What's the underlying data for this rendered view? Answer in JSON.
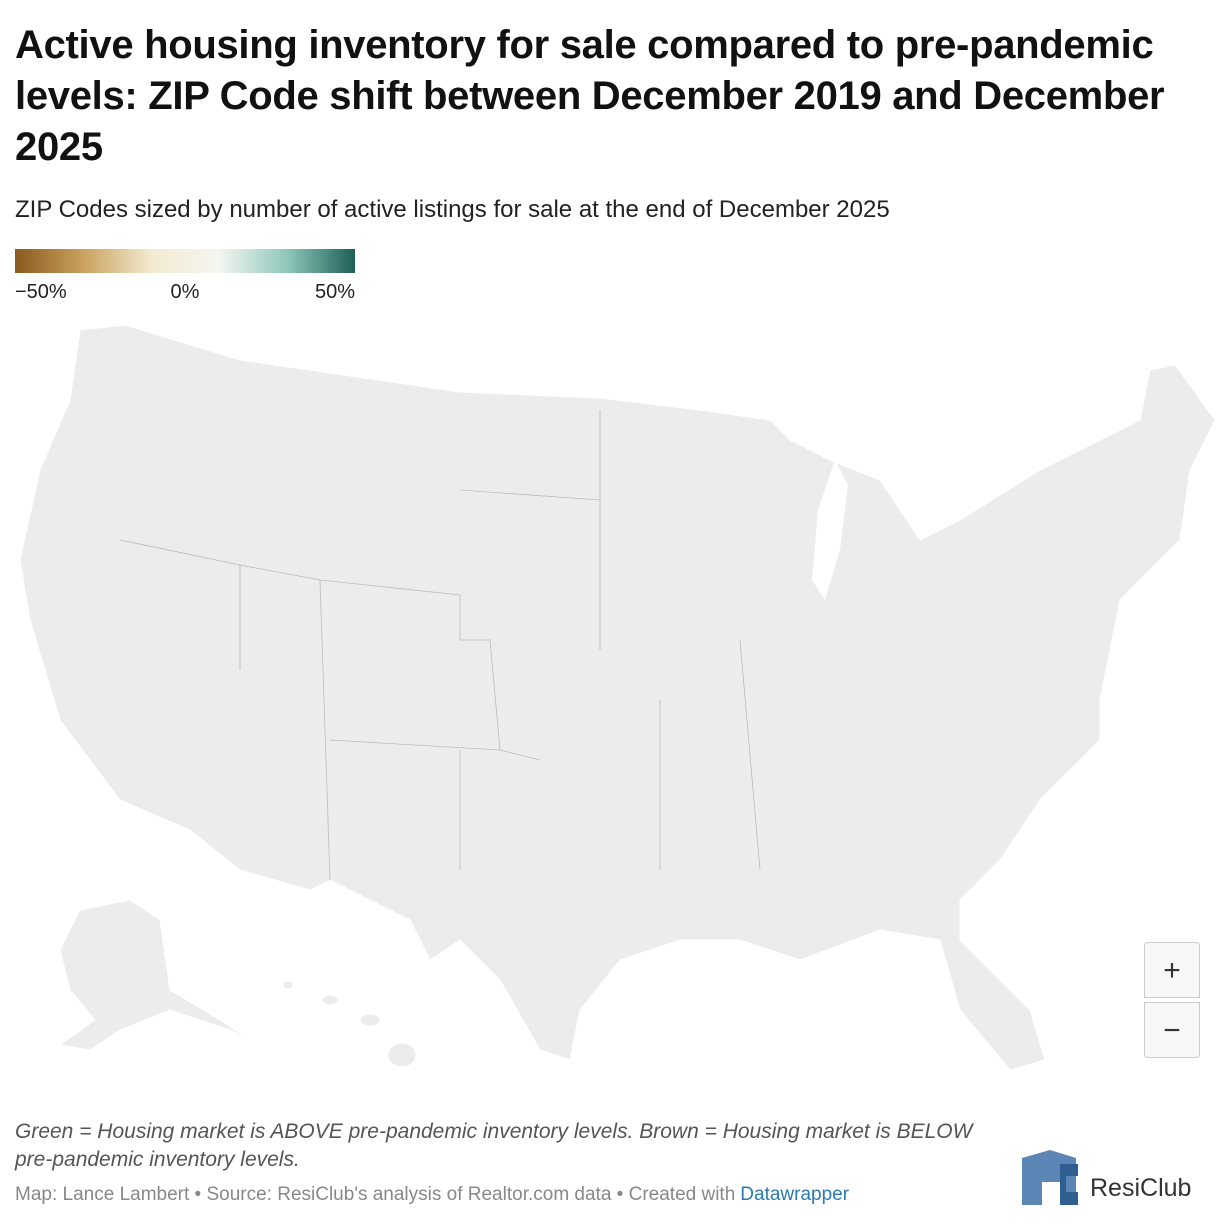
{
  "header": {
    "title": "Active housing inventory for sale compared to pre-pandemic levels: ZIP Code shift between December 2019 and December 2025",
    "subtitle": "ZIP Codes sized by number of active listings for sale at the end of December 2025"
  },
  "legend": {
    "range": [
      -50,
      50
    ],
    "colors": [
      "#8a5a1e",
      "#c9a25e",
      "#f3ead0",
      "#f4f6f1",
      "#8fc7bb",
      "#1f5f58"
    ],
    "ticks": [
      {
        "value": -50,
        "label": "−50%"
      },
      {
        "value": 0,
        "label": "0%"
      },
      {
        "value": 50,
        "label": "50%"
      }
    ]
  },
  "zoom": {
    "in": "+",
    "out": "−"
  },
  "footer": {
    "note": "Green = Housing market is ABOVE pre-pandemic inventory levels. Brown = Housing market is BELOW pre-pandemic inventory levels.",
    "source": "Map: Lance Lambert • Source: ResiClub's analysis of Realtor.com data • Created with",
    "link": "Datawrapper",
    "brand": "ResiClub"
  }
}
